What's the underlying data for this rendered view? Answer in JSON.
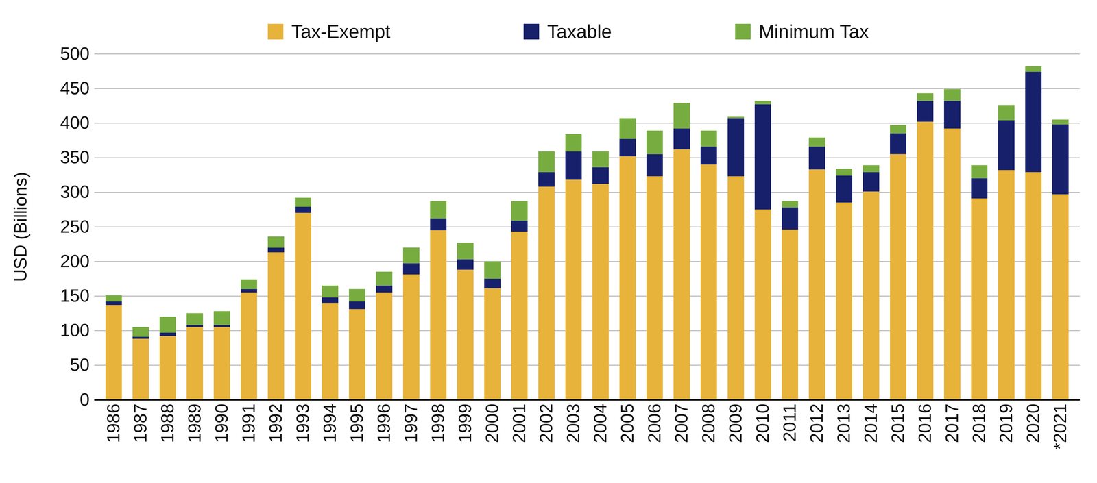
{
  "chart_data": {
    "type": "bar",
    "stacked": true,
    "grid": true,
    "legend": "top",
    "y_label": "USD (Billions)",
    "categories": [
      "1986",
      "1987",
      "1988",
      "1989",
      "1990",
      "1991",
      "1992",
      "1993",
      "1994",
      "1995",
      "1996",
      "1997",
      "1998",
      "1999",
      "2000",
      "2001",
      "2002",
      "2003",
      "2004",
      "2005",
      "2006",
      "2007",
      "2008",
      "2009",
      "2010",
      "2011",
      "2012",
      "2013",
      "2014",
      "2015",
      "2016",
      "2017",
      "2018",
      "2019",
      "2020",
      "*2021"
    ],
    "series": [
      {
        "name": "Tax-Exempt",
        "color": "#e7b33b",
        "values": [
          137,
          88,
          92,
          105,
          105,
          155,
          213,
          270,
          140,
          131,
          155,
          181,
          245,
          188,
          161,
          243,
          308,
          318,
          312,
          352,
          323,
          362,
          340,
          323,
          275,
          246,
          333,
          285,
          301,
          355,
          402,
          392,
          291,
          332,
          329,
          297
        ]
      },
      {
        "name": "Taxable",
        "color": "#17206b",
        "values": [
          5,
          3,
          5,
          3,
          3,
          5,
          7,
          9,
          8,
          11,
          10,
          16,
          17,
          15,
          14,
          16,
          21,
          41,
          24,
          25,
          32,
          30,
          26,
          84,
          152,
          32,
          33,
          39,
          28,
          30,
          30,
          40,
          29,
          72,
          145,
          101
        ]
      },
      {
        "name": "Minimum Tax",
        "color": "#77ad40",
        "values": [
          9,
          14,
          23,
          17,
          20,
          14,
          16,
          13,
          17,
          18,
          20,
          23,
          25,
          24,
          25,
          28,
          30,
          25,
          23,
          30,
          34,
          37,
          23,
          2,
          5,
          9,
          13,
          10,
          10,
          12,
          11,
          17,
          19,
          22,
          8,
          7
        ]
      }
    ],
    "ylim": [
      0,
      500
    ],
    "yticks": [
      0,
      50,
      100,
      150,
      200,
      250,
      300,
      350,
      400,
      450,
      500
    ]
  }
}
